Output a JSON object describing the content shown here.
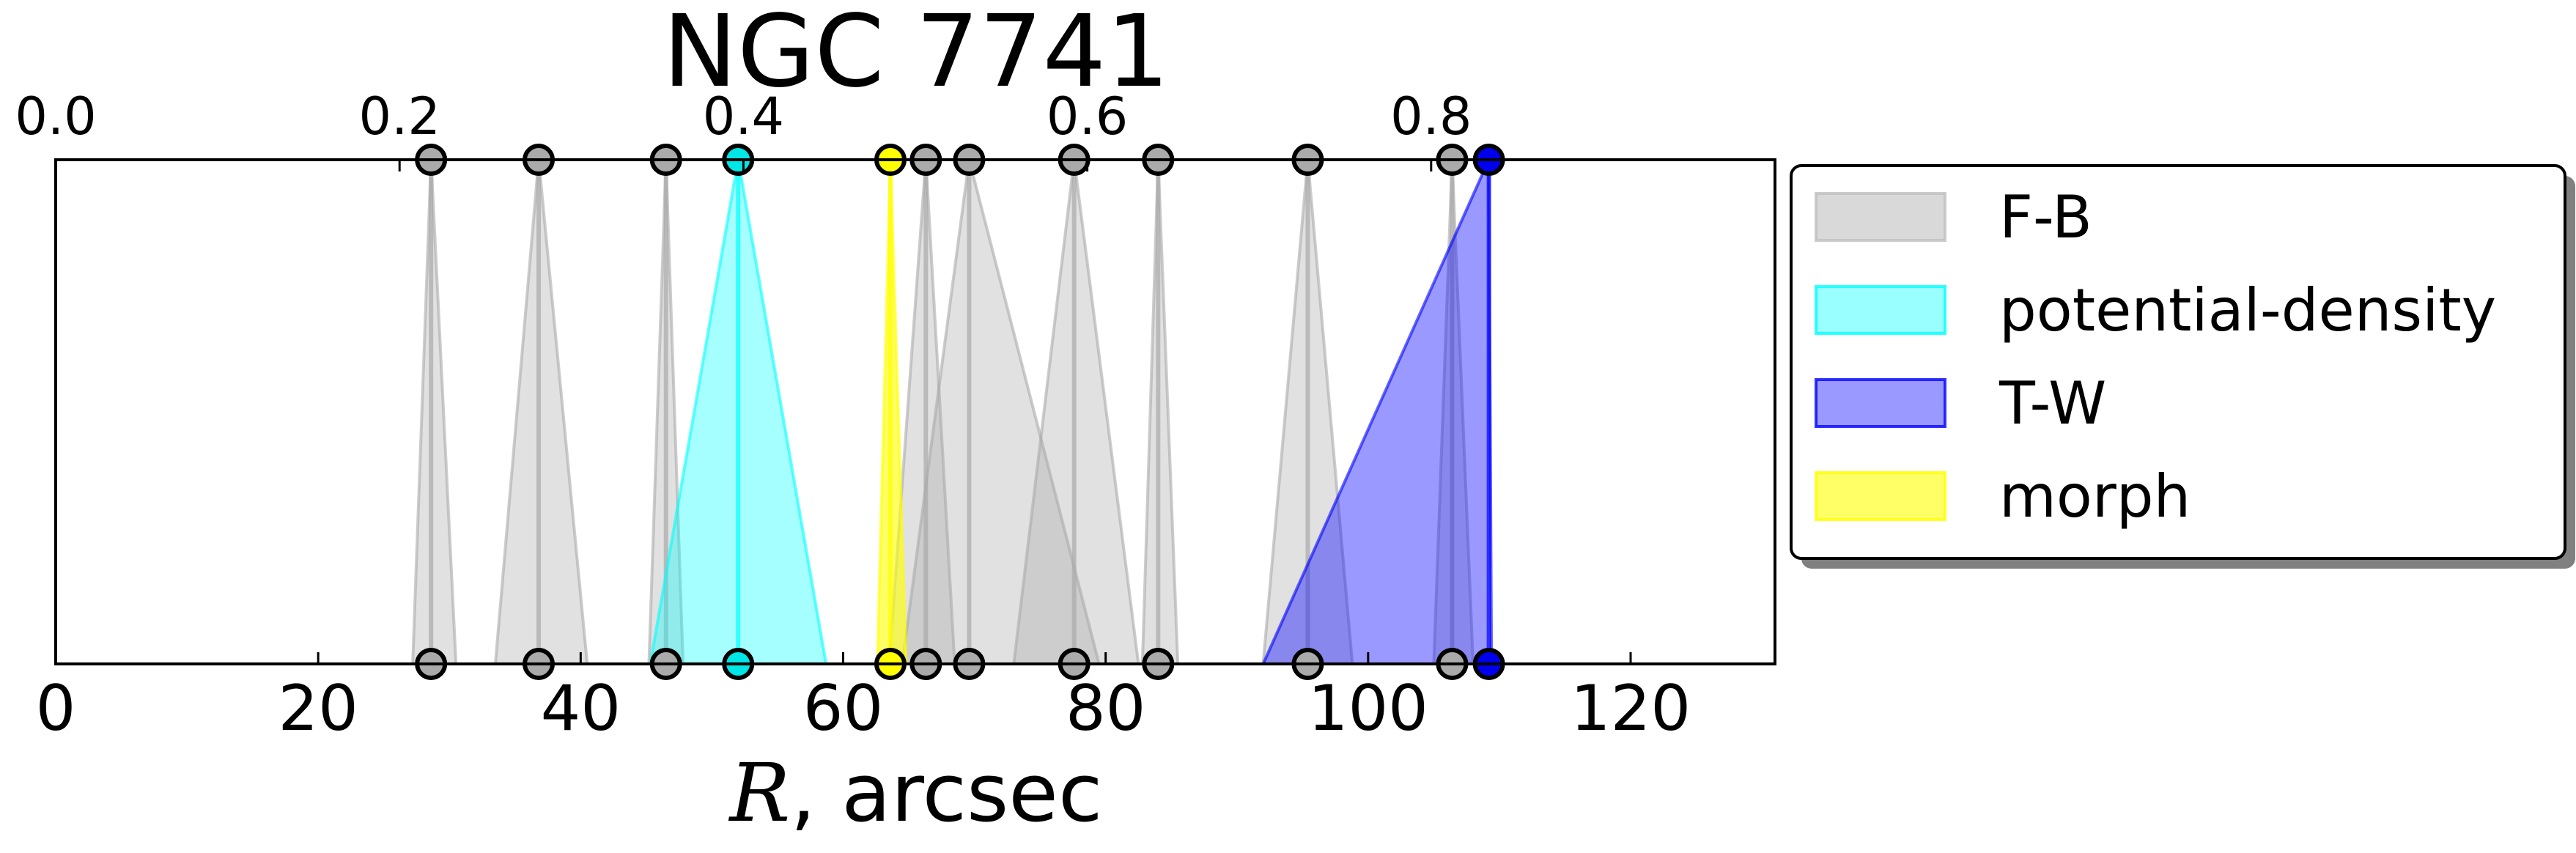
{
  "chart_data": {
    "type": "range-diagram",
    "title": "NGC 7741",
    "xlabel_symbol": "R",
    "xlabel_rest": ", arcsec",
    "xlim": [
      0,
      131
    ],
    "xticks": [
      0,
      20,
      40,
      60,
      80,
      100,
      120
    ],
    "top_axis": {
      "xlim": [
        0,
        1.0
      ],
      "ticks": [
        0.0,
        0.2,
        0.4,
        0.6,
        0.8
      ],
      "tick_labels": [
        "0.0",
        "0.2",
        "0.4",
        "0.6",
        "0.8"
      ]
    },
    "grid": false,
    "legend": {
      "position": "right",
      "entries": [
        {
          "label": "F-B",
          "color": "#bfbfbf",
          "alpha": 0.6
        },
        {
          "label": "potential-density",
          "color": "#00ffff",
          "alpha": 0.4
        },
        {
          "label": "T-W",
          "color": "#0000ff",
          "alpha": 0.4
        },
        {
          "label": "morph",
          "color": "#ffff00",
          "alpha": 0.6
        }
      ]
    },
    "series": [
      {
        "method": "F-B",
        "color": "#aaaaaa",
        "fill_alpha": 0.35,
        "points": [
          {
            "top": 28.6,
            "bottom": 28.6,
            "low": 27.2,
            "high": 30.5
          },
          {
            "top": 36.8,
            "bottom": 36.8,
            "low": 33.5,
            "high": 40.5
          },
          {
            "top": 46.5,
            "bottom": 46.5,
            "low": 45.2,
            "high": 47.8
          },
          {
            "top": 66.3,
            "bottom": 66.3,
            "low": 63.5,
            "high": 68.5
          },
          {
            "top": 69.6,
            "bottom": 69.6,
            "low": 64.5,
            "high": 79.5
          },
          {
            "top": 77.6,
            "bottom": 77.6,
            "low": 73.0,
            "high": 82.5
          },
          {
            "top": 84.0,
            "bottom": 84.0,
            "low": 82.8,
            "high": 85.5
          },
          {
            "top": 95.4,
            "bottom": 95.4,
            "low": 92.0,
            "high": 98.8
          },
          {
            "top": 106.4,
            "bottom": 106.4,
            "low": 105.0,
            "high": 108.0
          }
        ]
      },
      {
        "method": "potential-density",
        "color": "#00ffff",
        "fill_alpha": 0.35,
        "points": [
          {
            "top": 52.0,
            "bottom": 52.0,
            "low": 45.3,
            "high": 58.7
          }
        ]
      },
      {
        "method": "T-W",
        "color": "#0000ff",
        "fill_alpha": 0.4,
        "points": [
          {
            "top": 109.2,
            "bottom": 109.2,
            "low": 92.0,
            "high": 109.4
          }
        ]
      },
      {
        "method": "morph",
        "color": "#ffff00",
        "fill_alpha": 0.6,
        "points": [
          {
            "top": 63.6,
            "bottom": 63.6,
            "low": 62.6,
            "high": 64.8
          }
        ]
      }
    ]
  }
}
